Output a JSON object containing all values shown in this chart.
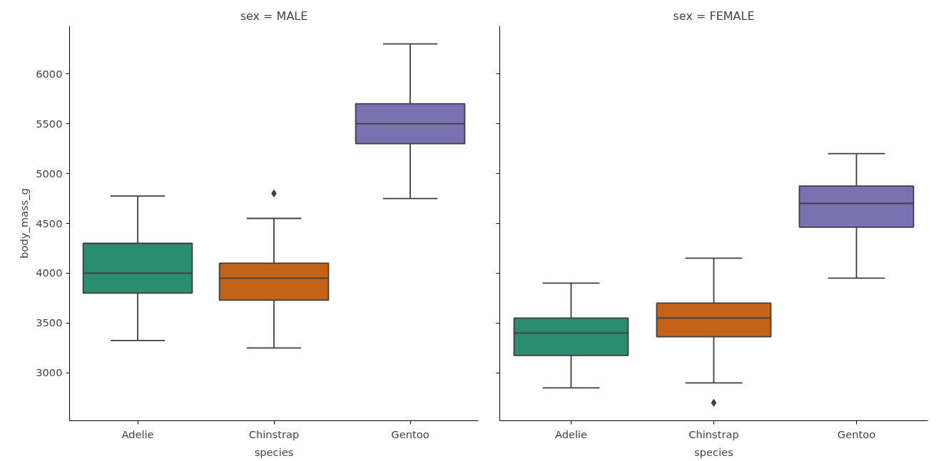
{
  "chart_data": [
    {
      "type": "box",
      "title": "sex = MALE",
      "xlabel": "species",
      "ylabel": "body_mass_g",
      "categories": [
        "Adelie",
        "Chinstrap",
        "Gentoo"
      ],
      "colors": [
        "#2a8d6f",
        "#c4621a",
        "#7a72b0"
      ],
      "ylim": [
        2520,
        6480
      ],
      "yticks": [
        3000,
        3500,
        4000,
        4500,
        5000,
        5500,
        6000
      ],
      "grid": false,
      "marker": "diamond",
      "boxes": [
        {
          "low": 3325,
          "q1": 3800,
          "median": 4000,
          "q3": 4300,
          "high": 4775
        },
        {
          "low": 3250,
          "q1": 3730,
          "median": 3950,
          "q3": 4100,
          "high": 4550,
          "outliers": [
            4800
          ]
        },
        {
          "low": 4750,
          "q1": 5300,
          "median": 5500,
          "q3": 5700,
          "high": 6300
        }
      ]
    },
    {
      "type": "box",
      "title": "sex = FEMALE",
      "xlabel": "species",
      "categories": [
        "Adelie",
        "Chinstrap",
        "Gentoo"
      ],
      "colors": [
        "#2a8d6f",
        "#c4621a",
        "#7a72b0"
      ],
      "ylim": [
        2520,
        6480
      ],
      "yticks": [
        3000,
        3500,
        4000,
        4500,
        5000,
        5500,
        6000
      ],
      "grid": false,
      "marker": "diamond",
      "tick_labels": "x",
      "boxes": [
        {
          "low": 2850,
          "q1": 3175,
          "median": 3400,
          "q3": 3550,
          "high": 3900
        },
        {
          "low": 2900,
          "q1": 3362,
          "median": 3550,
          "q3": 3700,
          "high": 4150,
          "outliers": [
            2700
          ]
        },
        {
          "low": 3950,
          "q1": 4462,
          "median": 4700,
          "q3": 4875,
          "high": 5200
        }
      ]
    }
  ]
}
